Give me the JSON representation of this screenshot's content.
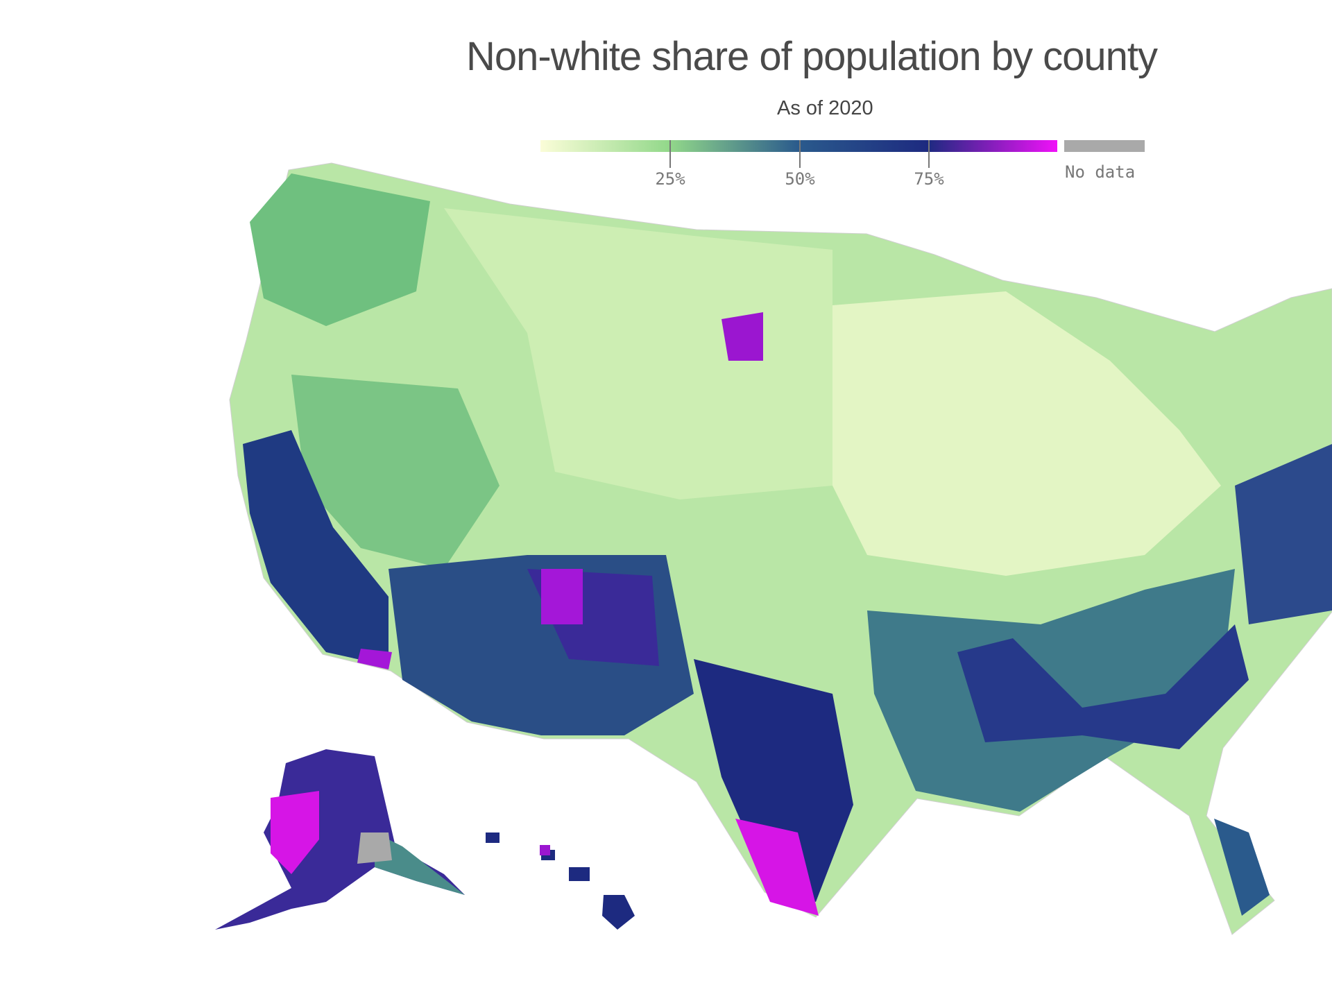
{
  "chart_data": {
    "type": "heatmap",
    "subtype": "choropleth-map",
    "title": "Non-white share of population by county",
    "subtitle": "As of 2020",
    "legend": {
      "scale": "continuous",
      "range": [
        0,
        100
      ],
      "unit": "%",
      "ticks": [
        {
          "value": 25,
          "label": "25%"
        },
        {
          "value": 50,
          "label": "50%"
        },
        {
          "value": 75,
          "label": "75%"
        }
      ],
      "stops": [
        {
          "value": 0,
          "color": "#fbfdd8"
        },
        {
          "value": 25,
          "color": "#92d88a"
        },
        {
          "value": 50,
          "color": "#2a5a8c"
        },
        {
          "value": 75,
          "color": "#1d2a80"
        },
        {
          "value": 100,
          "color": "#f012f8"
        }
      ],
      "no_data": {
        "label": "No data",
        "color": "#a9a9a9"
      }
    },
    "regions_shown": [
      "Contiguous United States",
      "Alaska",
      "Hawaii"
    ]
  }
}
